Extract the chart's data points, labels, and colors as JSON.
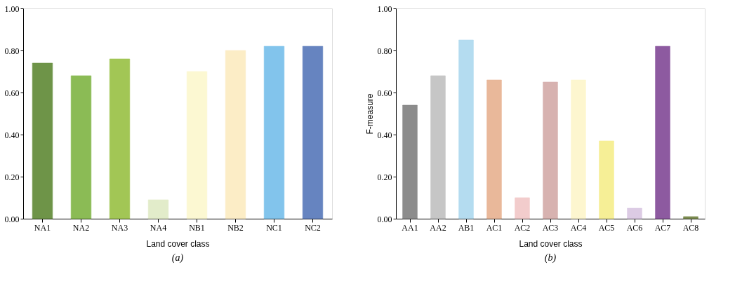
{
  "chart_data": [
    {
      "type": "bar",
      "categories": [
        "NA1",
        "NA2",
        "NA3",
        "NA4",
        "NB1",
        "NB2",
        "NC1",
        "NC2"
      ],
      "values": [
        0.74,
        0.68,
        0.76,
        0.09,
        0.7,
        0.8,
        0.82,
        0.82
      ],
      "colors": [
        "#6e9448",
        "#8bbb55",
        "#a2c655",
        "#e2ecca",
        "#fcf8d2",
        "#fcedc6",
        "#82c4ec",
        "#6684c0"
      ],
      "xlabel": "Land cover class",
      "ylim": [
        0,
        1
      ],
      "yticks": [
        {
          "value": 0,
          "label": "0.00"
        },
        {
          "value": 0.2,
          "label": "0.20"
        },
        {
          "value": 0.4,
          "label": "0.40"
        },
        {
          "value": 0.6,
          "label": "0.60"
        },
        {
          "value": 0.8,
          "label": "0.80"
        },
        {
          "value": 1,
          "label": "1.00"
        }
      ],
      "grid": false,
      "annotations": [
        "(a)"
      ]
    },
    {
      "type": "bar",
      "categories": [
        "AA1",
        "AA2",
        "AB1",
        "AC1",
        "AC2",
        "AC3",
        "AC4",
        "AC5",
        "AC6",
        "AC7",
        "AC8"
      ],
      "values": [
        0.54,
        0.68,
        0.85,
        0.66,
        0.1,
        0.65,
        0.66,
        0.37,
        0.05,
        0.82,
        0.01
      ],
      "colors": [
        "#8c8c8c",
        "#c6c6c6",
        "#b4dcf0",
        "#e9b89a",
        "#f2cccc",
        "#d7b2b0",
        "#fdf6cf",
        "#f6ef96",
        "#dccbe4",
        "#8d5aa0",
        "#7c8c50"
      ],
      "xlabel": "Land cover class",
      "ylabel": "F-measure",
      "ylim": [
        0,
        1
      ],
      "yticks": [
        {
          "value": 0,
          "label": "0.00"
        },
        {
          "value": 0.2,
          "label": "0.20"
        },
        {
          "value": 0.4,
          "label": "0.40"
        },
        {
          "value": 0.6,
          "label": "0.60"
        },
        {
          "value": 0.8,
          "label": "0.80"
        },
        {
          "value": 1,
          "label": "1.00"
        }
      ],
      "grid": false,
      "annotations": [
        "(b)"
      ]
    }
  ]
}
